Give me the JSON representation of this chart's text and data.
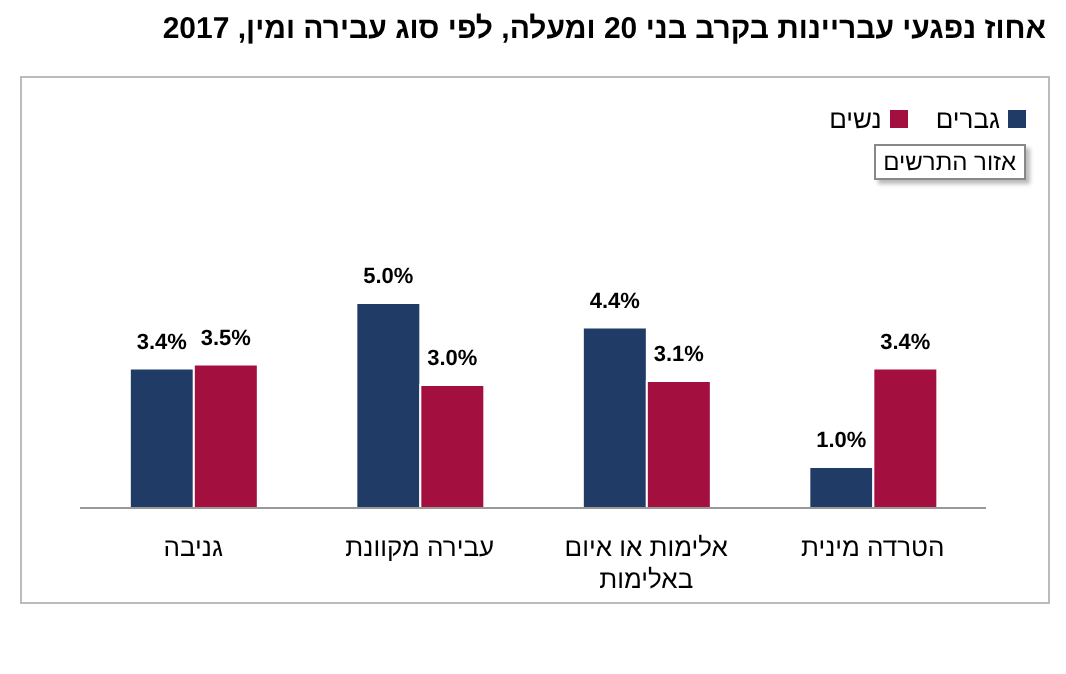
{
  "chart_data": {
    "type": "bar",
    "title": "אחוז נפגעי עבריינות בקרב בני 20 ומעלה, לפי סוג עבירה ומין, 2017",
    "categories": [
      "גניבה",
      "עבירה מקוונת",
      "אלימות או איום באלימות",
      "הטרדה מינית"
    ],
    "series": [
      {
        "name": "גברים",
        "color": "#1f3b66",
        "values": [
          3.4,
          5.0,
          4.4,
          1.0
        ],
        "value_labels": [
          "3.4%",
          "5.0%",
          "4.4%",
          "1.0%"
        ]
      },
      {
        "name": "נשים",
        "color": "#a3103f",
        "values": [
          3.5,
          3.0,
          3.1,
          3.4
        ],
        "value_labels": [
          "3.5%",
          "3.0%",
          "3.1%",
          "3.4%"
        ]
      }
    ],
    "annotations": [
      "אזור התרשים"
    ],
    "legend": "top right",
    "grid": false
  }
}
